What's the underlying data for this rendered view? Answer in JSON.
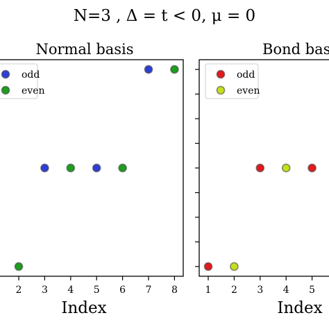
{
  "suptitle": "N=3 , Δ = t < 0, μ = 0",
  "chart_data": [
    {
      "type": "scatter",
      "title": "Normal basis",
      "xlabel": "Index",
      "ylabel": "",
      "xlim": [
        0.5,
        8.4
      ],
      "ylim": [
        -1.1,
        1.1
      ],
      "xticks": [
        2,
        3,
        4,
        5,
        6,
        7,
        8
      ],
      "yticks": [
        -1,
        -0.75,
        -0.5,
        -0.25,
        0,
        0.25,
        0.5,
        0.75,
        1
      ],
      "grid": false,
      "legend_position": "top-left",
      "series": [
        {
          "name": "odd",
          "color": "#2e3fd6",
          "x": [
            3,
            5,
            7
          ],
          "y": [
            0,
            0,
            1
          ]
        },
        {
          "name": "even",
          "color": "#1e9e1e",
          "x": [
            2,
            4,
            6,
            8
          ],
          "y": [
            -1,
            0,
            0,
            1
          ]
        }
      ]
    },
    {
      "type": "scatter",
      "title": "Bond basis",
      "xlabel": "Index",
      "ylabel": "",
      "xlim": [
        0.6,
        8.4
      ],
      "ylim": [
        -1.1,
        1.1
      ],
      "xticks": [
        1,
        2,
        3,
        4,
        5
      ],
      "yticks": [
        -1,
        -0.75,
        -0.5,
        -0.25,
        0,
        0.25,
        0.5,
        0.75,
        1
      ],
      "grid": false,
      "legend_position": "top-left",
      "series": [
        {
          "name": "odd",
          "color": "#e31a1c",
          "x": [
            1,
            3,
            5
          ],
          "y": [
            -1,
            0,
            0
          ]
        },
        {
          "name": "even",
          "color": "#c6e01a",
          "x": [
            2,
            4
          ],
          "y": [
            -1,
            0
          ]
        }
      ]
    }
  ]
}
